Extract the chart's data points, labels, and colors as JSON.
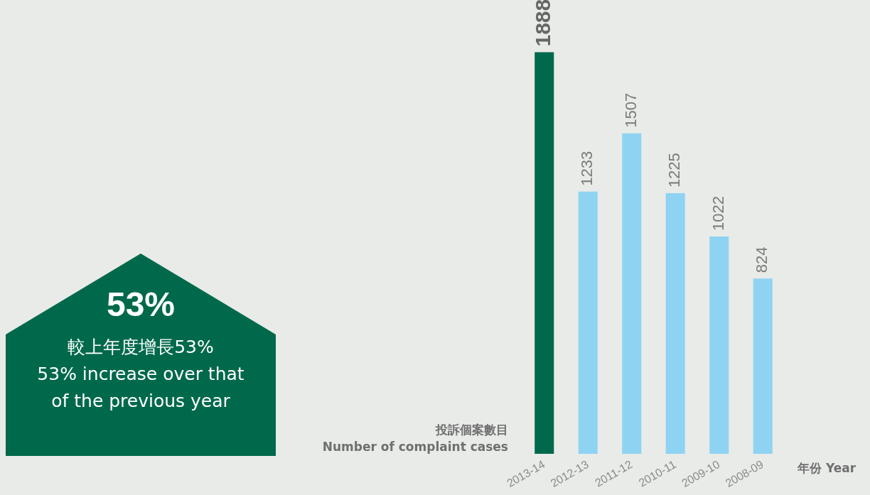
{
  "chart_data": {
    "type": "bar",
    "categories": [
      "2013-14",
      "2012-13",
      "2011-12",
      "2010-11",
      "2009-10",
      "2008-09"
    ],
    "values": [
      1888,
      1233,
      1507,
      1225,
      1022,
      824
    ],
    "colors": [
      "#00694b",
      "#8fd3f3",
      "#8fd3f3",
      "#8fd3f3",
      "#8fd3f3",
      "#8fd3f3"
    ],
    "data_labels": true,
    "ylabel": "投訴個案數目\nNumber of complaint cases",
    "xlabel": "年份 Year",
    "annotations": [
      "53%",
      "較上年度增長53%",
      "53% increase over that of the previous year"
    ],
    "grid": false,
    "legend": false
  }
}
